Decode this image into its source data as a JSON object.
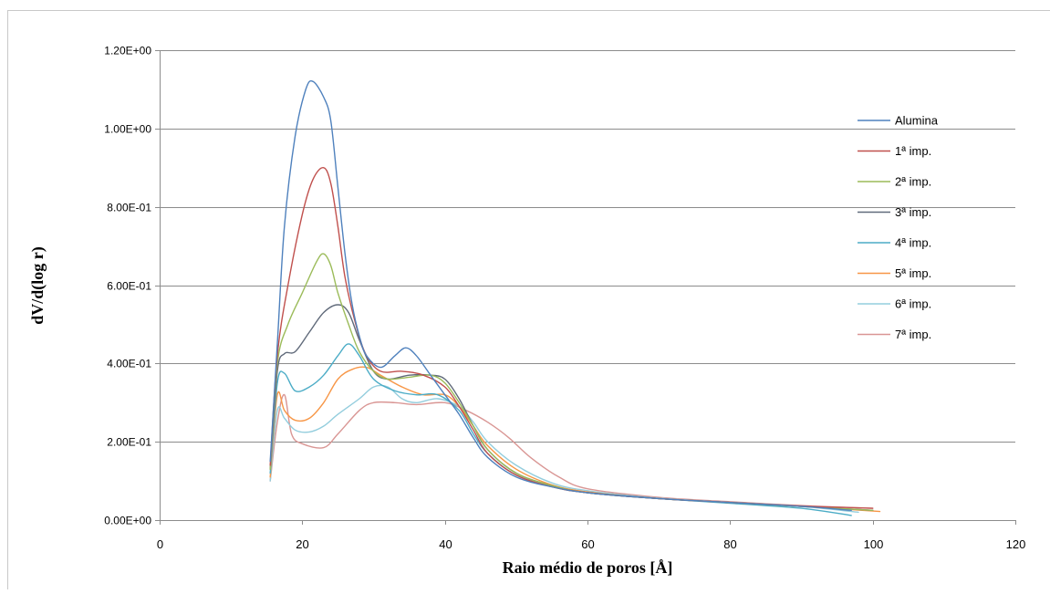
{
  "chart_data": {
    "type": "line",
    "title": "",
    "xlabel": "Raio médio de poros [Å]",
    "ylabel": "dV/d(log r)",
    "xlim": [
      0,
      120
    ],
    "ylim": [
      0,
      1.2
    ],
    "x_ticks": [
      0,
      20,
      40,
      60,
      80,
      100,
      120
    ],
    "x_tick_labels": [
      "0",
      "20",
      "40",
      "60",
      "80",
      "100",
      "120"
    ],
    "y_ticks": [
      0,
      0.2,
      0.4,
      0.6,
      0.8,
      1.0,
      1.2
    ],
    "y_tick_labels": [
      "0.00E+00",
      "2.00E-01",
      "4.00E-01",
      "6.00E-01",
      "8.00E-01",
      "1.00E+00",
      "1.20E+00"
    ],
    "grid": "horizontal",
    "legend_position": "top-right",
    "series": [
      {
        "name": "Alumina",
        "color": "#4F81BD",
        "points": [
          [
            15.5,
            0.15
          ],
          [
            16.5,
            0.45
          ],
          [
            17.5,
            0.75
          ],
          [
            19,
            0.98
          ],
          [
            20.5,
            1.1
          ],
          [
            21.5,
            1.12
          ],
          [
            23,
            1.08
          ],
          [
            24,
            1.02
          ],
          [
            25,
            0.85
          ],
          [
            26,
            0.68
          ],
          [
            27,
            0.55
          ],
          [
            28,
            0.47
          ],
          [
            29,
            0.42
          ],
          [
            31,
            0.39
          ],
          [
            33,
            0.42
          ],
          [
            34.5,
            0.44
          ],
          [
            36,
            0.42
          ],
          [
            38,
            0.37
          ],
          [
            40,
            0.32
          ],
          [
            42,
            0.27
          ],
          [
            44,
            0.21
          ],
          [
            46,
            0.16
          ],
          [
            50,
            0.11
          ],
          [
            55,
            0.085
          ],
          [
            60,
            0.07
          ],
          [
            70,
            0.055
          ],
          [
            80,
            0.045
          ],
          [
            90,
            0.035
          ],
          [
            97,
            0.025
          ]
        ]
      },
      {
        "name": "1ª imp.",
        "color": "#C0504D",
        "points": [
          [
            15.5,
            0.14
          ],
          [
            16.5,
            0.42
          ],
          [
            18,
            0.6
          ],
          [
            20,
            0.78
          ],
          [
            21.5,
            0.87
          ],
          [
            23,
            0.9
          ],
          [
            24,
            0.86
          ],
          [
            25,
            0.75
          ],
          [
            26,
            0.62
          ],
          [
            27.5,
            0.5
          ],
          [
            29,
            0.42
          ],
          [
            31,
            0.38
          ],
          [
            34,
            0.38
          ],
          [
            37,
            0.37
          ],
          [
            40,
            0.34
          ],
          [
            42,
            0.29
          ],
          [
            44,
            0.23
          ],
          [
            46,
            0.17
          ],
          [
            50,
            0.115
          ],
          [
            55,
            0.085
          ],
          [
            60,
            0.07
          ],
          [
            70,
            0.055
          ],
          [
            80,
            0.045
          ],
          [
            90,
            0.036
          ],
          [
            100,
            0.03
          ]
        ]
      },
      {
        "name": "2ª imp.",
        "color": "#9BBB59",
        "points": [
          [
            15.5,
            0.13
          ],
          [
            16.5,
            0.4
          ],
          [
            18,
            0.5
          ],
          [
            20,
            0.58
          ],
          [
            22,
            0.66
          ],
          [
            23,
            0.68
          ],
          [
            24,
            0.65
          ],
          [
            25,
            0.58
          ],
          [
            26.5,
            0.5
          ],
          [
            28,
            0.43
          ],
          [
            30,
            0.38
          ],
          [
            32,
            0.36
          ],
          [
            35,
            0.365
          ],
          [
            38,
            0.37
          ],
          [
            40,
            0.35
          ],
          [
            42,
            0.3
          ],
          [
            44,
            0.24
          ],
          [
            46,
            0.18
          ],
          [
            50,
            0.12
          ],
          [
            55,
            0.088
          ],
          [
            60,
            0.07
          ],
          [
            70,
            0.055
          ],
          [
            80,
            0.045
          ],
          [
            90,
            0.035
          ],
          [
            100,
            0.025
          ]
        ]
      },
      {
        "name": "3ª imp.",
        "color": "#606A7A",
        "points": [
          [
            15.5,
            0.13
          ],
          [
            16.5,
            0.38
          ],
          [
            17.5,
            0.425
          ],
          [
            19,
            0.43
          ],
          [
            21,
            0.48
          ],
          [
            23,
            0.53
          ],
          [
            25,
            0.55
          ],
          [
            26.5,
            0.53
          ],
          [
            28,
            0.46
          ],
          [
            30,
            0.38
          ],
          [
            32,
            0.36
          ],
          [
            35,
            0.37
          ],
          [
            38,
            0.37
          ],
          [
            40,
            0.36
          ],
          [
            42,
            0.31
          ],
          [
            44,
            0.24
          ],
          [
            46,
            0.18
          ],
          [
            50,
            0.12
          ],
          [
            55,
            0.088
          ],
          [
            60,
            0.07
          ],
          [
            70,
            0.055
          ],
          [
            80,
            0.045
          ],
          [
            90,
            0.035
          ],
          [
            100,
            0.025
          ]
        ]
      },
      {
        "name": "4ª imp.",
        "color": "#4BACC6",
        "points": [
          [
            15.5,
            0.12
          ],
          [
            16.5,
            0.35
          ],
          [
            17.5,
            0.375
          ],
          [
            19,
            0.33
          ],
          [
            21,
            0.34
          ],
          [
            23,
            0.37
          ],
          [
            25,
            0.42
          ],
          [
            26.5,
            0.45
          ],
          [
            28,
            0.42
          ],
          [
            30,
            0.36
          ],
          [
            33,
            0.33
          ],
          [
            36,
            0.32
          ],
          [
            39,
            0.32
          ],
          [
            42,
            0.28
          ],
          [
            44,
            0.22
          ],
          [
            46,
            0.17
          ],
          [
            50,
            0.115
          ],
          [
            55,
            0.085
          ],
          [
            60,
            0.07
          ],
          [
            70,
            0.055
          ],
          [
            80,
            0.043
          ],
          [
            90,
            0.03
          ],
          [
            97,
            0.012
          ]
        ]
      },
      {
        "name": "5ª imp.",
        "color": "#F79646",
        "points": [
          [
            15.5,
            0.11
          ],
          [
            16.5,
            0.32
          ],
          [
            17.5,
            0.28
          ],
          [
            19,
            0.255
          ],
          [
            21,
            0.26
          ],
          [
            23,
            0.3
          ],
          [
            25,
            0.36
          ],
          [
            27,
            0.385
          ],
          [
            29,
            0.39
          ],
          [
            31,
            0.37
          ],
          [
            34,
            0.34
          ],
          [
            37,
            0.32
          ],
          [
            40,
            0.32
          ],
          [
            42,
            0.29
          ],
          [
            44,
            0.24
          ],
          [
            46,
            0.19
          ],
          [
            50,
            0.13
          ],
          [
            55,
            0.09
          ],
          [
            60,
            0.072
          ],
          [
            70,
            0.055
          ],
          [
            80,
            0.045
          ],
          [
            90,
            0.035
          ],
          [
            101,
            0.022
          ]
        ]
      },
      {
        "name": "6ª imp.",
        "color": "#93CDDD",
        "points": [
          [
            15.5,
            0.1
          ],
          [
            16.5,
            0.28
          ],
          [
            17.5,
            0.26
          ],
          [
            19,
            0.23
          ],
          [
            21,
            0.225
          ],
          [
            23,
            0.24
          ],
          [
            25,
            0.27
          ],
          [
            28,
            0.31
          ],
          [
            30,
            0.34
          ],
          [
            32,
            0.34
          ],
          [
            34,
            0.31
          ],
          [
            36,
            0.3
          ],
          [
            39,
            0.31
          ],
          [
            42,
            0.29
          ],
          [
            44,
            0.25
          ],
          [
            46,
            0.2
          ],
          [
            50,
            0.14
          ],
          [
            55,
            0.095
          ],
          [
            60,
            0.075
          ],
          [
            70,
            0.056
          ],
          [
            80,
            0.045
          ],
          [
            90,
            0.035
          ],
          [
            98,
            0.02
          ]
        ]
      },
      {
        "name": "7ª imp.",
        "color": "#D99694",
        "points": [
          [
            15.5,
            0.1
          ],
          [
            16.5,
            0.25
          ],
          [
            17.5,
            0.32
          ],
          [
            18.5,
            0.22
          ],
          [
            20,
            0.195
          ],
          [
            23,
            0.185
          ],
          [
            25,
            0.22
          ],
          [
            28,
            0.28
          ],
          [
            30,
            0.3
          ],
          [
            33,
            0.3
          ],
          [
            36,
            0.295
          ],
          [
            40,
            0.3
          ],
          [
            43,
            0.28
          ],
          [
            46,
            0.25
          ],
          [
            49,
            0.21
          ],
          [
            52,
            0.16
          ],
          [
            56,
            0.11
          ],
          [
            60,
            0.08
          ],
          [
            70,
            0.058
          ],
          [
            80,
            0.047
          ],
          [
            90,
            0.037
          ],
          [
            100,
            0.03
          ]
        ]
      }
    ]
  }
}
